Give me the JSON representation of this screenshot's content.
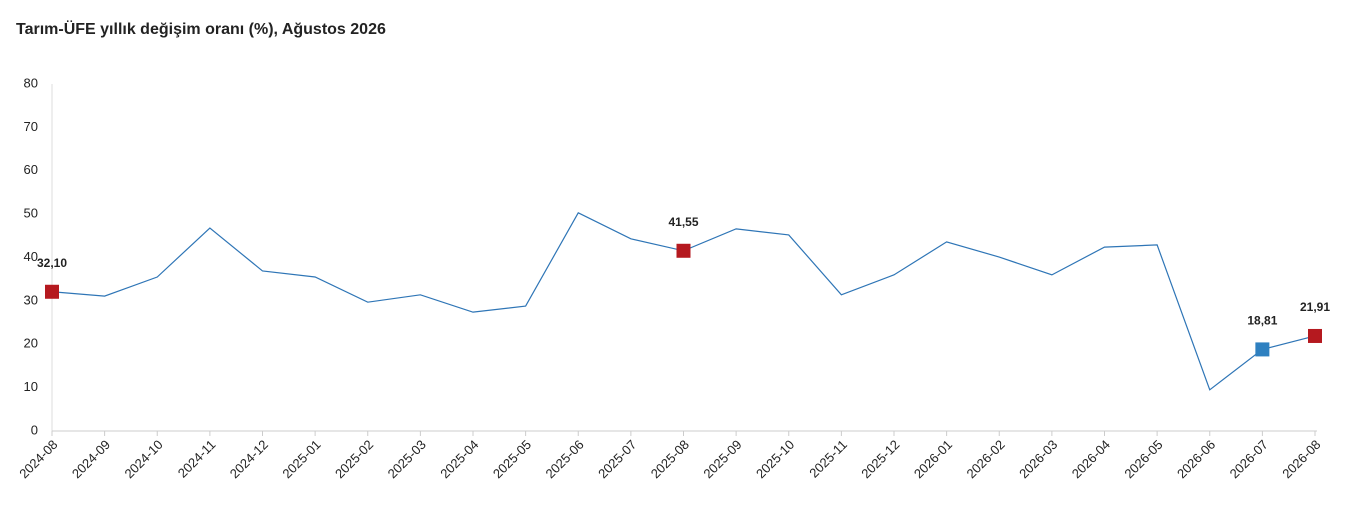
{
  "chart_data": {
    "type": "line",
    "title": "Tarım-ÜFE yıllık değişim oranı (%), Ağustos 2026",
    "categories": [
      "2024-08",
      "2024-09",
      "2024-10",
      "2024-11",
      "2024-12",
      "2025-01",
      "2025-02",
      "2025-03",
      "2025-04",
      "2025-05",
      "2025-06",
      "2025-07",
      "2025-08",
      "2025-09",
      "2025-10",
      "2025-11",
      "2025-12",
      "2026-01",
      "2026-02",
      "2026-03",
      "2026-04",
      "2026-05",
      "2026-06",
      "2026-07",
      "2026-08"
    ],
    "series": [
      {
        "color": "#2e75b6",
        "values": [
          32.1,
          31.1,
          35.5,
          46.8,
          36.9,
          35.5,
          29.7,
          31.4,
          27.4,
          28.8,
          50.3,
          44.3,
          41.55,
          46.6,
          45.2,
          31.4,
          36.0,
          43.6,
          40.1,
          36.0,
          42.4,
          42.9,
          9.5,
          18.81,
          21.91
        ],
        "value_labels": [
          "32,10",
          null,
          null,
          null,
          null,
          null,
          null,
          null,
          null,
          null,
          null,
          null,
          "41,55",
          null,
          null,
          null,
          null,
          null,
          null,
          null,
          null,
          null,
          null,
          "18,81",
          "21,91"
        ],
        "marker_colors": [
          "#b5191f",
          null,
          null,
          null,
          null,
          null,
          null,
          null,
          null,
          null,
          null,
          null,
          "#b5191f",
          null,
          null,
          null,
          null,
          null,
          null,
          null,
          null,
          null,
          null,
          "#2e80c0",
          "#b5191f"
        ]
      }
    ],
    "ylim": [
      0,
      80
    ],
    "yticks": [
      0,
      10,
      20,
      30,
      40,
      50,
      60,
      70,
      80
    ],
    "grid": false
  }
}
